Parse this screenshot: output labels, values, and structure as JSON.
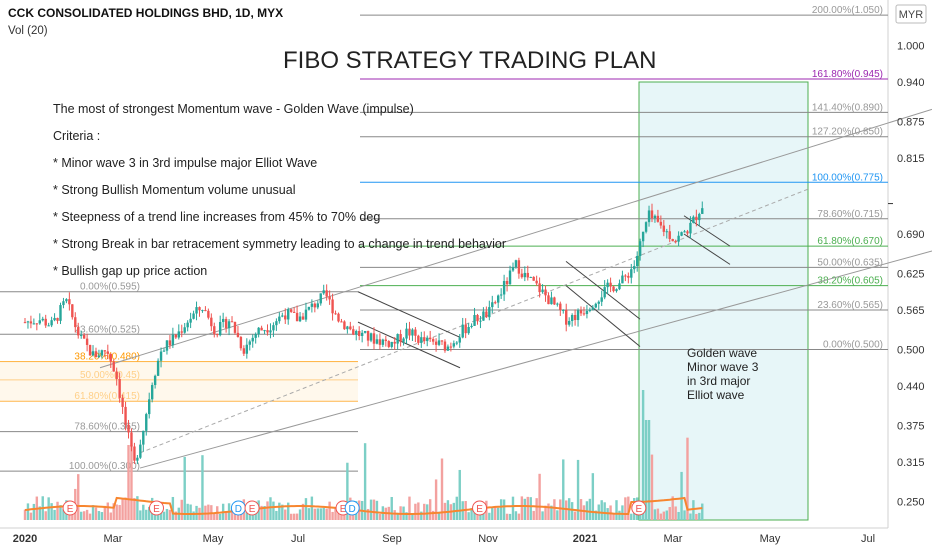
{
  "header": {
    "symbol_line": "CCK CONSOLIDATED HOLDINGS BHD, 1D, MYX",
    "vol_label": "Vol (20)",
    "currency_badge": "MYR"
  },
  "main_title": "FIBO STRATEGY TRADING PLAN",
  "notes": [
    "The most of strongest Momentum wave - Golden Wave (impulse)",
    "Criteria :",
    "* Minor wave 3 in 3rd impulse major Elliot Wave",
    "* Strong Bullish Momentum volume unusual",
    "* Steepness of a trend line increases from 45% to 70% deg",
    "* Strong Break in bar retracement symmetry leading to a change in trend behavior",
    "* Bullish gap up price action"
  ],
  "golden_wave_note": [
    "Golden wave",
    "Minor wave 3",
    "in 3rd major",
    "Elliot wave"
  ],
  "colors": {
    "up": "#26a69a",
    "down": "#ef5350",
    "volume_ma": "#f7862f",
    "fib_purple": "#9c27b0",
    "fib_blue": "#2196f3",
    "fib_green": "#4caf50",
    "fib_orange": "#ff9800",
    "fib_gray": "#888888",
    "golden_box_border": "#4caf50",
    "golden_box_fill": "#e7f6f8"
  },
  "chart_data": {
    "type": "candlestick",
    "x_tick_labels": [
      "2020",
      "Mar",
      "May",
      "Jul",
      "Sep",
      "Nov",
      "2021",
      "Mar",
      "May",
      "Jul"
    ],
    "y_tick_labels": [
      "1.000",
      "0.940",
      "0.875",
      "0.815",
      "0.690",
      "0.625",
      "0.565",
      "0.500",
      "0.440",
      "0.375",
      "0.315",
      "0.250"
    ],
    "ylim": [
      0.22,
      1.06
    ],
    "last_price": "0.740",
    "right_fib": [
      {
        "label": "200.00%(1.050)",
        "value": 1.05,
        "color": "gray"
      },
      {
        "label": "161.80%(0.945)",
        "value": 0.945,
        "color": "purple"
      },
      {
        "label": "141.40%(0.890)",
        "value": 0.89,
        "color": "gray"
      },
      {
        "label": "127.20%(0.850)",
        "value": 0.85,
        "color": "gray"
      },
      {
        "label": "100.00%(0.775)",
        "value": 0.775,
        "color": "blue"
      },
      {
        "label": "78.60%(0.715)",
        "value": 0.715,
        "color": "gray"
      },
      {
        "label": "61.80%(0.670)",
        "value": 0.67,
        "color": "green"
      },
      {
        "label": "50.00%(0.635)",
        "value": 0.635,
        "color": "gray"
      },
      {
        "label": "38.20%(0.605)",
        "value": 0.605,
        "color": "green"
      },
      {
        "label": "23.60%(0.565)",
        "value": 0.565,
        "color": "gray"
      },
      {
        "label": "0.00%(0.500)",
        "value": 0.5,
        "color": "gray"
      }
    ],
    "left_fib": [
      {
        "label": "0.00%(0.595)",
        "value": 0.595,
        "color": "gray"
      },
      {
        "label": "23.60%(0.525)",
        "value": 0.525,
        "color": "gray"
      },
      {
        "label": "38.20%(0.480)",
        "value": 0.48,
        "color": "orange"
      },
      {
        "label": "50.00%(0.45)",
        "value": 0.45,
        "color": "orange"
      },
      {
        "label": "61.80%(0.415)",
        "value": 0.415,
        "color": "orange"
      },
      {
        "label": "78.60%(0.365)",
        "value": 0.365,
        "color": "gray"
      },
      {
        "label": "100.00%(0.300)",
        "value": 0.3,
        "color": "gray"
      }
    ],
    "event_markers": [
      {
        "label": "E",
        "month_index": 1.1
      },
      {
        "label": "E",
        "month_index": 3.0
      },
      {
        "label": "D",
        "month_index": 4.8
      },
      {
        "label": "E",
        "month_index": 5.1
      },
      {
        "label": "E",
        "month_index": 7.1
      },
      {
        "label": "D",
        "month_index": 7.3
      },
      {
        "label": "E",
        "month_index": 10.1
      },
      {
        "label": "E",
        "month_index": 13.6
      }
    ],
    "trend_prices": [
      [
        0.0,
        0.545
      ],
      [
        0.3,
        0.55
      ],
      [
        0.6,
        0.54
      ],
      [
        0.9,
        0.58
      ],
      [
        1.2,
        0.52
      ],
      [
        1.5,
        0.49
      ],
      [
        1.8,
        0.5
      ],
      [
        2.0,
        0.46
      ],
      [
        2.2,
        0.38
      ],
      [
        2.4,
        0.31
      ],
      [
        2.6,
        0.37
      ],
      [
        2.8,
        0.45
      ],
      [
        3.0,
        0.5
      ],
      [
        3.3,
        0.52
      ],
      [
        3.6,
        0.55
      ],
      [
        3.9,
        0.57
      ],
      [
        4.2,
        0.53
      ],
      [
        4.5,
        0.55
      ],
      [
        4.8,
        0.5
      ],
      [
        5.1,
        0.53
      ],
      [
        5.4,
        0.54
      ],
      [
        5.7,
        0.56
      ],
      [
        6.0,
        0.55
      ],
      [
        6.3,
        0.57
      ],
      [
        6.6,
        0.59
      ],
      [
        6.9,
        0.55
      ],
      [
        7.2,
        0.53
      ],
      [
        7.5,
        0.52
      ],
      [
        7.8,
        0.515
      ],
      [
        8.1,
        0.51
      ],
      [
        8.4,
        0.53
      ],
      [
        8.7,
        0.515
      ],
      [
        9.0,
        0.51
      ],
      [
        9.3,
        0.505
      ],
      [
        9.6,
        0.53
      ],
      [
        9.9,
        0.55
      ],
      [
        10.2,
        0.56
      ],
      [
        10.5,
        0.6
      ],
      [
        10.8,
        0.64
      ],
      [
        11.0,
        0.62
      ],
      [
        11.3,
        0.6
      ],
      [
        11.6,
        0.575
      ],
      [
        11.9,
        0.55
      ],
      [
        12.2,
        0.56
      ],
      [
        12.5,
        0.58
      ],
      [
        12.8,
        0.6
      ],
      [
        13.1,
        0.61
      ],
      [
        13.4,
        0.64
      ],
      [
        13.7,
        0.72
      ],
      [
        14.0,
        0.7
      ],
      [
        14.3,
        0.68
      ],
      [
        14.6,
        0.7
      ],
      [
        14.9,
        0.74
      ]
    ]
  }
}
